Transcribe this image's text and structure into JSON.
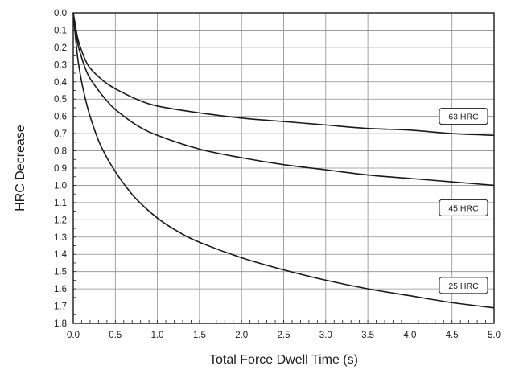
{
  "chart_data": {
    "type": "line",
    "xlabel": "Total Force Dwell Time (s)",
    "ylabel": "HRC Decrease",
    "xlim": [
      0,
      5
    ],
    "ylim": [
      0,
      1.8
    ],
    "y_inverted": true,
    "grid": true,
    "legend": "none",
    "x_ticks": [
      "0.0",
      "0.5",
      "1.0",
      "1.5",
      "2.0",
      "2.5",
      "3.0",
      "3.5",
      "4.0",
      "4.5",
      "5.0"
    ],
    "y_ticks": [
      "0.0",
      "0.1",
      "0.2",
      "0.3",
      "0.4",
      "0.5",
      "0.6",
      "0.7",
      "0.8",
      "0.9",
      "1.0",
      "1.1",
      "1.2",
      "1.3",
      "1.4",
      "1.5",
      "1.6",
      "1.7",
      "1.8"
    ],
    "series": [
      {
        "name": "63 HRC",
        "x": [
          0,
          0.05,
          0.1,
          0.15,
          0.2,
          0.3,
          0.4,
          0.5,
          0.75,
          1.0,
          1.5,
          2.0,
          2.5,
          3.0,
          3.5,
          4.0,
          4.5,
          5.0
        ],
        "values": [
          0,
          0.14,
          0.22,
          0.28,
          0.32,
          0.37,
          0.41,
          0.44,
          0.5,
          0.54,
          0.58,
          0.61,
          0.63,
          0.65,
          0.67,
          0.68,
          0.7,
          0.71
        ]
      },
      {
        "name": "45 HRC",
        "x": [
          0,
          0.05,
          0.1,
          0.15,
          0.2,
          0.3,
          0.4,
          0.5,
          0.75,
          1.0,
          1.5,
          2.0,
          2.5,
          3.0,
          3.5,
          4.0,
          4.5,
          5.0
        ],
        "values": [
          0,
          0.17,
          0.26,
          0.33,
          0.38,
          0.45,
          0.51,
          0.56,
          0.65,
          0.71,
          0.79,
          0.84,
          0.88,
          0.91,
          0.94,
          0.96,
          0.98,
          1.0
        ]
      },
      {
        "name": "25 HRC",
        "x": [
          0,
          0.05,
          0.1,
          0.15,
          0.2,
          0.3,
          0.4,
          0.5,
          0.6,
          0.75,
          1.0,
          1.25,
          1.5,
          2.0,
          2.5,
          3.0,
          3.5,
          4.0,
          4.5,
          5.0
        ],
        "values": [
          0,
          0.25,
          0.4,
          0.51,
          0.6,
          0.74,
          0.84,
          0.92,
          0.99,
          1.08,
          1.19,
          1.27,
          1.33,
          1.42,
          1.49,
          1.55,
          1.6,
          1.64,
          1.68,
          1.71
        ]
      }
    ],
    "series_labels": [
      {
        "text": "63 HRC",
        "anchor_x": 5.0,
        "anchor_y": 0.6
      },
      {
        "text": "45 HRC",
        "anchor_x": 5.0,
        "anchor_y": 1.13
      },
      {
        "text": "25 HRC",
        "anchor_x": 5.0,
        "anchor_y": 1.58
      }
    ],
    "colors": {
      "line": "#1a1a1a",
      "grid": "#8c8c8c",
      "frame": "#1a1a1a",
      "label_box": "#ffffff"
    }
  }
}
